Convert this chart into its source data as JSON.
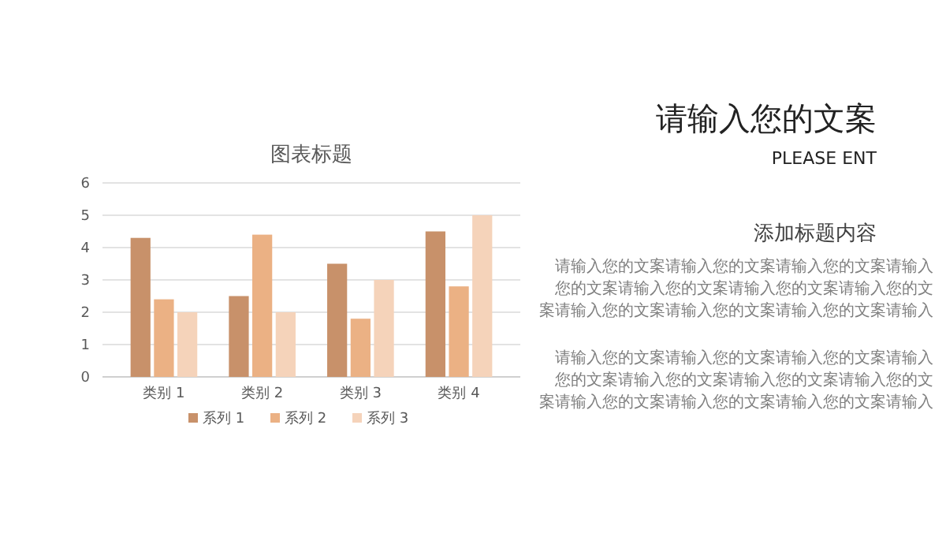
{
  "chart_data": [
    {
      "type": "bar",
      "title": "图表标题",
      "categories": [
        "类别 1",
        "类别 2",
        "类别 3",
        "类别 4"
      ],
      "series": [
        {
          "name": "系列 1",
          "color": "#c8916a",
          "values": [
            4.3,
            2.5,
            3.5,
            4.5
          ]
        },
        {
          "name": "系列 2",
          "color": "#ebb184",
          "values": [
            2.4,
            4.4,
            1.8,
            2.8
          ]
        },
        {
          "name": "系列 3",
          "color": "#f5d3ba",
          "values": [
            2,
            2,
            3,
            5
          ]
        }
      ],
      "ylim": [
        0,
        6
      ],
      "yticks": [
        0,
        1,
        2,
        3,
        4,
        5,
        6
      ],
      "grid": "y",
      "legend": "bottom"
    },
    {
      "type": "other",
      "title": "请输入您的文案",
      "subtitle": "PLEASE ENT",
      "annotations": [
        "添加标题内容",
        "请输入您的文案请输入您的文案请输入您的文案请输入",
        "您的文案请输入您的文案请输入您的文案请输入您的文",
        "案请输入您的文案请输入您的文案请输入您的文案请输入",
        "请输入您的文案请输入您的文案请输入您的文案请输入",
        "您的文案请输入您的文案请输入您的文案请输入您的文",
        "案请输入您的文案请输入您的文案请输入您的文案请输入"
      ]
    }
  ]
}
